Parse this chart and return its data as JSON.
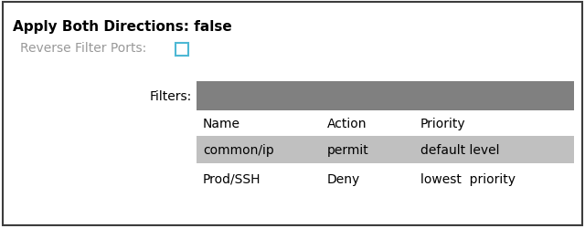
{
  "fig_width": 6.4,
  "fig_height": 2.51,
  "dpi": 100,
  "bg_color": "#ffffff",
  "border_color": "#3c3c3c",
  "title_line1": "Apply Both Directions: false",
  "title_line1_color": "#000000",
  "title_line2_label": "Reverse Filter Ports: ",
  "title_line2_color": "#999999",
  "checkbox_color": "#4db8d4",
  "filters_label": "Filters:",
  "filters_label_color": "#000000",
  "header_bg": "#808080",
  "row1_bg": "#c0c0c0",
  "row2_bg": "#ffffff",
  "col_headers": [
    "Name",
    "Action",
    "Priority"
  ],
  "row1_data": [
    "common/ip",
    "permit",
    "default level"
  ],
  "row2_data": [
    "Prod/SSH",
    "Deny",
    "lowest  priority"
  ],
  "text_color": "#000000",
  "font_size": 10,
  "title_font_size": 11,
  "label_font_size": 10
}
